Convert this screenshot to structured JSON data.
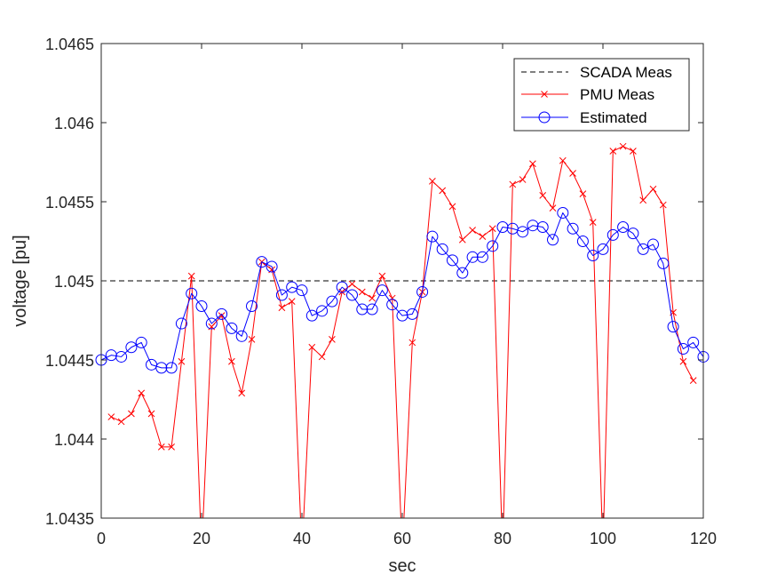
{
  "chart_data": {
    "type": "line",
    "title": "",
    "xlabel": "sec",
    "ylabel": "voltage [pu]",
    "xlim": [
      0,
      120
    ],
    "ylim": [
      1.0435,
      1.0465
    ],
    "xticks": [
      0,
      20,
      40,
      60,
      80,
      100,
      120
    ],
    "xtick_labels": [
      "0",
      "20",
      "40",
      "60",
      "80",
      "100",
      "120"
    ],
    "yticks": [
      1.0435,
      1.044,
      1.0445,
      1.045,
      1.0455,
      1.046,
      1.0465
    ],
    "ytick_labels": [
      "1.0435",
      "1.044",
      "1.0445",
      "1.045",
      "1.0455",
      "1.046",
      "1.0465"
    ],
    "grid": false,
    "legend_position": "top-right",
    "series": [
      {
        "name": "SCADA Meas",
        "style": "dashed",
        "color": "#000000",
        "x": [
          0,
          120
        ],
        "y": [
          1.045,
          1.045
        ]
      },
      {
        "name": "PMU Meas",
        "style": "solid-x-marker",
        "color": "#ff0000",
        "x": [
          2,
          4,
          6,
          8,
          10,
          12,
          14,
          16,
          18,
          20,
          22,
          24,
          26,
          28,
          30,
          32,
          34,
          36,
          38,
          40,
          42,
          44,
          46,
          48,
          50,
          52,
          54,
          56,
          58,
          60,
          62,
          64,
          66,
          68,
          70,
          72,
          74,
          76,
          78,
          80,
          82,
          84,
          86,
          88,
          90,
          92,
          94,
          96,
          98,
          100,
          102,
          104,
          106,
          108,
          110,
          112,
          114,
          116,
          118
        ],
        "y": [
          1.04414,
          1.04411,
          1.04416,
          1.04429,
          1.04416,
          1.04395,
          1.04395,
          1.04449,
          1.04503,
          null,
          1.04471,
          1.04478,
          1.04449,
          1.04429,
          1.04463,
          1.04512,
          1.04507,
          1.04483,
          1.04487,
          null,
          1.04458,
          1.04452,
          1.04463,
          1.04493,
          1.04498,
          1.04493,
          1.04489,
          1.04503,
          1.04489,
          null,
          1.04461,
          1.04493,
          1.04563,
          1.04557,
          1.04547,
          1.04526,
          1.04532,
          1.04528,
          1.04533,
          null,
          1.04561,
          1.04564,
          1.04574,
          1.04554,
          1.04546,
          1.04576,
          1.04568,
          1.04555,
          1.04537,
          null,
          1.04582,
          1.04585,
          1.04582,
          1.04551,
          1.04558,
          1.04548,
          1.0448,
          1.04449,
          1.04437
        ]
      },
      {
        "name": "Estimated",
        "style": "solid-circle-marker",
        "color": "#0000ff",
        "x": [
          0,
          2,
          4,
          6,
          8,
          10,
          12,
          14,
          16,
          18,
          20,
          22,
          24,
          26,
          28,
          30,
          32,
          34,
          36,
          38,
          40,
          42,
          44,
          46,
          48,
          50,
          52,
          54,
          56,
          58,
          60,
          62,
          64,
          66,
          68,
          70,
          72,
          74,
          76,
          78,
          80,
          82,
          84,
          86,
          88,
          90,
          92,
          94,
          96,
          98,
          100,
          102,
          104,
          106,
          108,
          110,
          112,
          114,
          116,
          118,
          120
        ],
        "y": [
          1.0445,
          1.04453,
          1.04452,
          1.04458,
          1.04461,
          1.04447,
          1.04445,
          1.04445,
          1.04473,
          1.04492,
          1.04484,
          1.04473,
          1.04479,
          1.0447,
          1.04465,
          1.04484,
          1.04512,
          1.04509,
          1.04491,
          1.04496,
          1.04494,
          1.04478,
          1.04481,
          1.04487,
          1.04496,
          1.04491,
          1.04482,
          1.04482,
          1.04494,
          1.04485,
          1.04478,
          1.04479,
          1.04493,
          1.04528,
          1.0452,
          1.04513,
          1.04505,
          1.04515,
          1.04515,
          1.04522,
          1.04534,
          1.04533,
          1.04531,
          1.04535,
          1.04534,
          1.04526,
          1.04543,
          1.04533,
          1.04525,
          1.04516,
          1.0452,
          1.04529,
          1.04534,
          1.0453,
          1.0452,
          1.04523,
          1.04511,
          1.04471,
          1.04457,
          1.04461,
          1.04452
        ]
      }
    ],
    "pmu_drop_samples": [
      18,
      22,
      38,
      42,
      58,
      62,
      78,
      82,
      98,
      102,
      118
    ]
  }
}
